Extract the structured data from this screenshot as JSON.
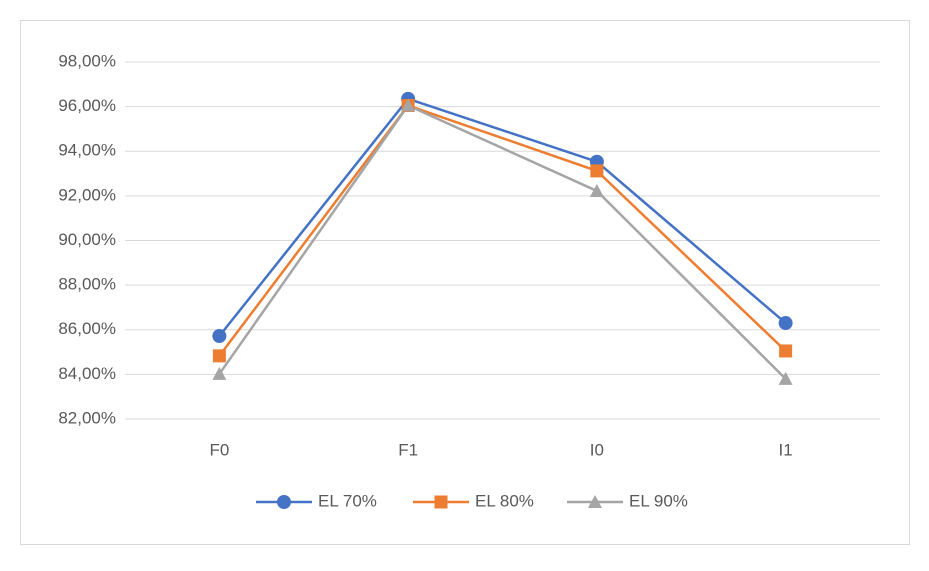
{
  "chart_data": {
    "type": "line",
    "categories": [
      "F0",
      "F1",
      "I0",
      "I1"
    ],
    "series": [
      {
        "name": "EL 70%",
        "color": "#4472c4",
        "marker": "circle",
        "values": [
          85.72,
          96.35,
          93.53,
          86.3
        ]
      },
      {
        "name": "EL 80%",
        "color": "#ed7d31",
        "marker": "square",
        "values": [
          84.83,
          96.05,
          93.12,
          85.05
        ]
      },
      {
        "name": "EL 90%",
        "color": "#a5a5a5",
        "marker": "triangle",
        "values": [
          84.02,
          96.05,
          92.22,
          83.8
        ]
      }
    ],
    "ylim": [
      82,
      98
    ],
    "yticks": [
      {
        "value": 82,
        "label": "82,00%"
      },
      {
        "value": 84,
        "label": "84,00%"
      },
      {
        "value": 86,
        "label": "86,00%"
      },
      {
        "value": 88,
        "label": "88,00%"
      },
      {
        "value": 90,
        "label": "90,00%"
      },
      {
        "value": 92,
        "label": "92,00%"
      },
      {
        "value": 94,
        "label": "94,00%"
      },
      {
        "value": 96,
        "label": "96,00%"
      },
      {
        "value": 98,
        "label": "98,00%"
      }
    ],
    "grid": true,
    "legend": "bottom"
  }
}
